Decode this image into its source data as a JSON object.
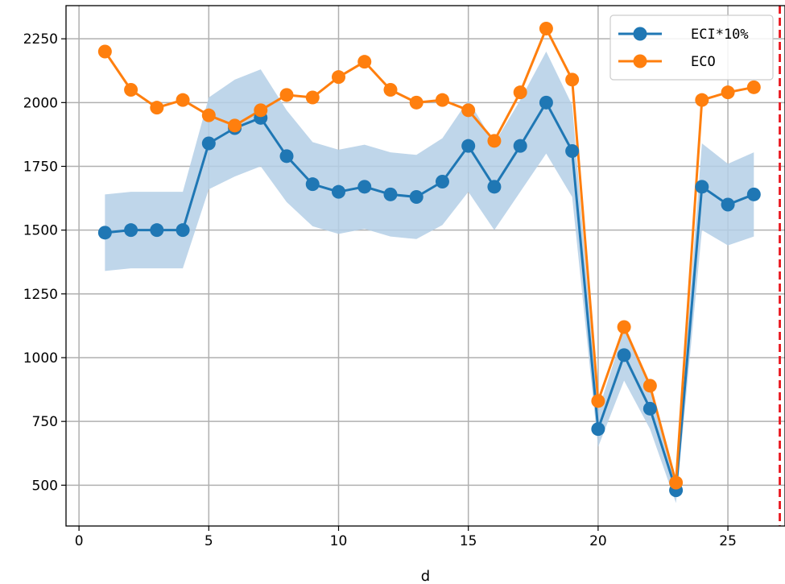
{
  "chart_data": {
    "type": "line",
    "title": "",
    "xlabel": "d",
    "ylabel": "",
    "xlim": [
      -0.5,
      27.2
    ],
    "ylim": [
      340,
      2380
    ],
    "xticks": [
      0,
      5,
      10,
      15,
      20,
      25
    ],
    "xtick_labels": [
      "0",
      "5",
      "10",
      "15",
      "20",
      "25"
    ],
    "yticks": [
      500,
      750,
      1000,
      1250,
      1500,
      1750,
      2000,
      2250
    ],
    "ytick_labels": [
      "500",
      "750",
      "1000",
      "1250",
      "1500",
      "1750",
      "2000",
      "2250"
    ],
    "grid": true,
    "legend_position": "top-right",
    "vline": {
      "x": 27,
      "color": "#e8141c",
      "style": "dashed"
    },
    "x": [
      1,
      2,
      3,
      4,
      5,
      6,
      7,
      8,
      9,
      10,
      11,
      12,
      13,
      14,
      15,
      16,
      17,
      18,
      19,
      20,
      21,
      22,
      23,
      24,
      25,
      26
    ],
    "series": [
      {
        "name": "ECI*10%",
        "color": "#1f77b4",
        "band_color": "#b4cfe6",
        "values": [
          1490,
          1500,
          1500,
          1500,
          1840,
          1900,
          1940,
          1790,
          1680,
          1650,
          1670,
          1640,
          1630,
          1690,
          1830,
          1670,
          1830,
          2000,
          1810,
          720,
          1010,
          800,
          480,
          1670,
          1600,
          1640
        ],
        "band_upper": [
          1640,
          1650,
          1650,
          1650,
          2020,
          2090,
          2130,
          1970,
          1845,
          1815,
          1835,
          1805,
          1795,
          1860,
          2010,
          1840,
          2010,
          2200,
          1990,
          790,
          1110,
          880,
          530,
          1840,
          1760,
          1805
        ],
        "band_lower": [
          1340,
          1350,
          1350,
          1350,
          1660,
          1710,
          1750,
          1610,
          1515,
          1485,
          1505,
          1475,
          1465,
          1520,
          1650,
          1500,
          1650,
          1800,
          1630,
          650,
          910,
          720,
          430,
          1500,
          1440,
          1475
        ]
      },
      {
        "name": "ECO",
        "color": "#ff7f0e",
        "values": [
          2200,
          2050,
          1980,
          2010,
          1950,
          1910,
          1970,
          2030,
          2020,
          2100,
          2160,
          2050,
          2000,
          2010,
          1970,
          1850,
          2040,
          2290,
          2090,
          830,
          1120,
          890,
          510,
          2010,
          2040,
          2060
        ]
      }
    ]
  }
}
